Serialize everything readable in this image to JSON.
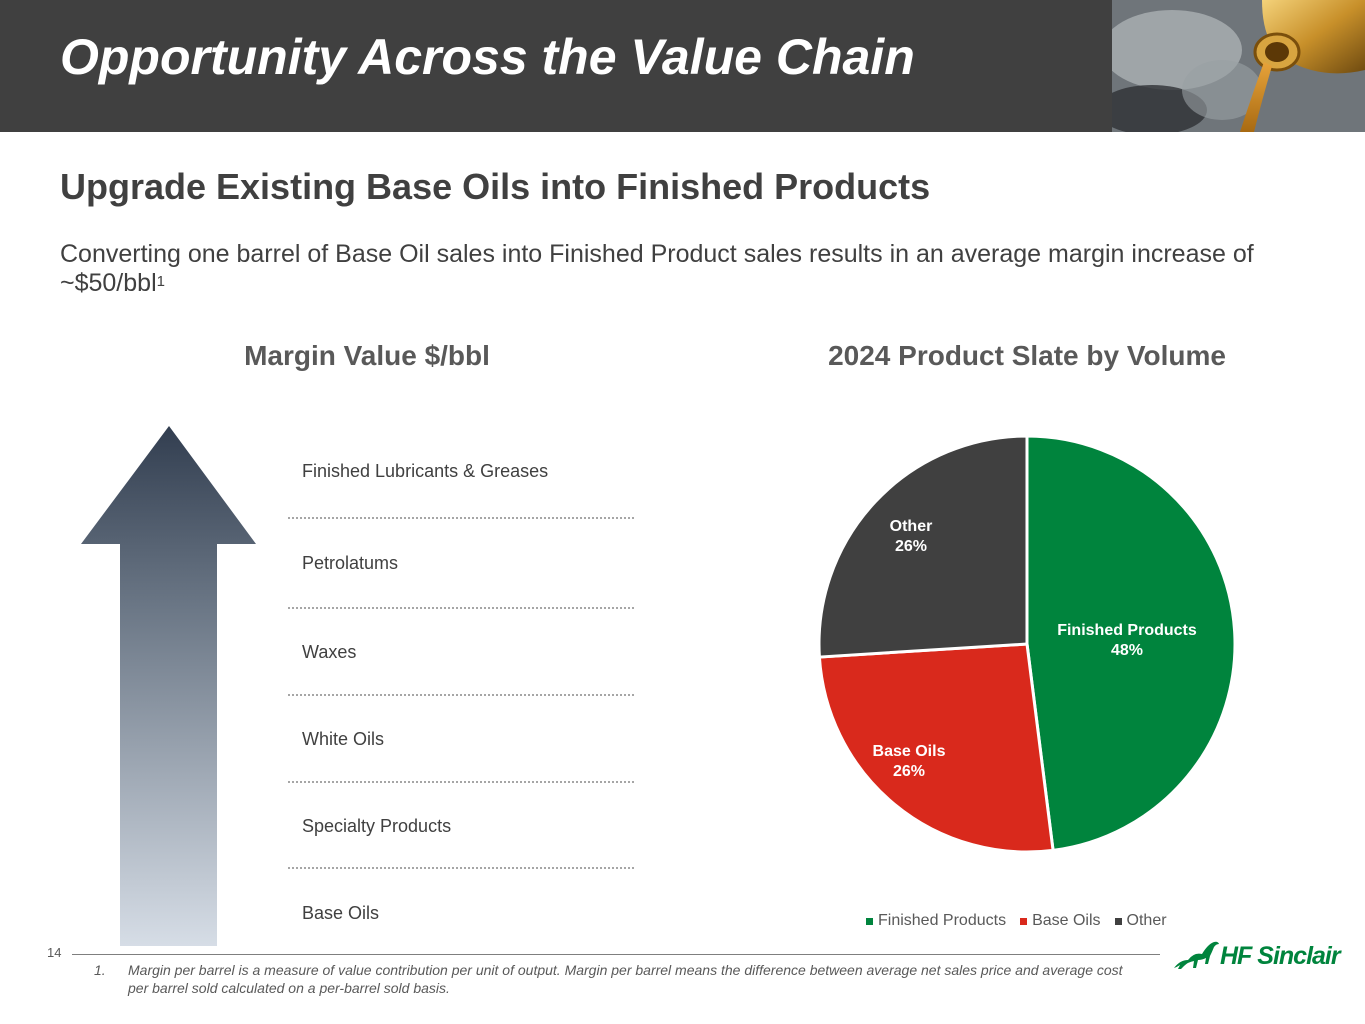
{
  "header": {
    "title": "Opportunity Across the Value Chain"
  },
  "subtitle": "Upgrade Existing Base Oils into Finished Products",
  "body": {
    "text": "Converting one barrel of Base Oil sales into Finished Product sales results in an average margin increase of ~$50/bbl",
    "superscript": "1"
  },
  "margin_section": {
    "title": "Margin Value $/bbl",
    "tiers": [
      "Finished Lubricants & Greases",
      "Petrolatums",
      "Waxes",
      "White Oils",
      "Specialty Products",
      "Base Oils"
    ]
  },
  "chart_data": {
    "type": "pie",
    "title": "2024 Product Slate by Volume",
    "slices": [
      {
        "name": "Finished Products",
        "value": 48,
        "label": "48%",
        "color": "#00843d"
      },
      {
        "name": "Base Oils",
        "value": 26,
        "label": "26%",
        "color": "#d9291c"
      },
      {
        "name": "Other",
        "value": 26,
        "label": "26%",
        "color": "#404040"
      }
    ],
    "legend_position": "bottom"
  },
  "footer": {
    "page_number": "14",
    "footnote_number": "1.",
    "footnote_text": "Margin per barrel is a measure of value contribution per unit of output. Margin per barrel means the difference between average net sales price and average cost per barrel sold calculated on a per-barrel sold basis.",
    "logo_text": "HF Sinclair"
  },
  "colors": {
    "header_bg": "#404040",
    "brand_green": "#00843d",
    "base_oils_red": "#d9291c",
    "other_gray": "#404040"
  }
}
